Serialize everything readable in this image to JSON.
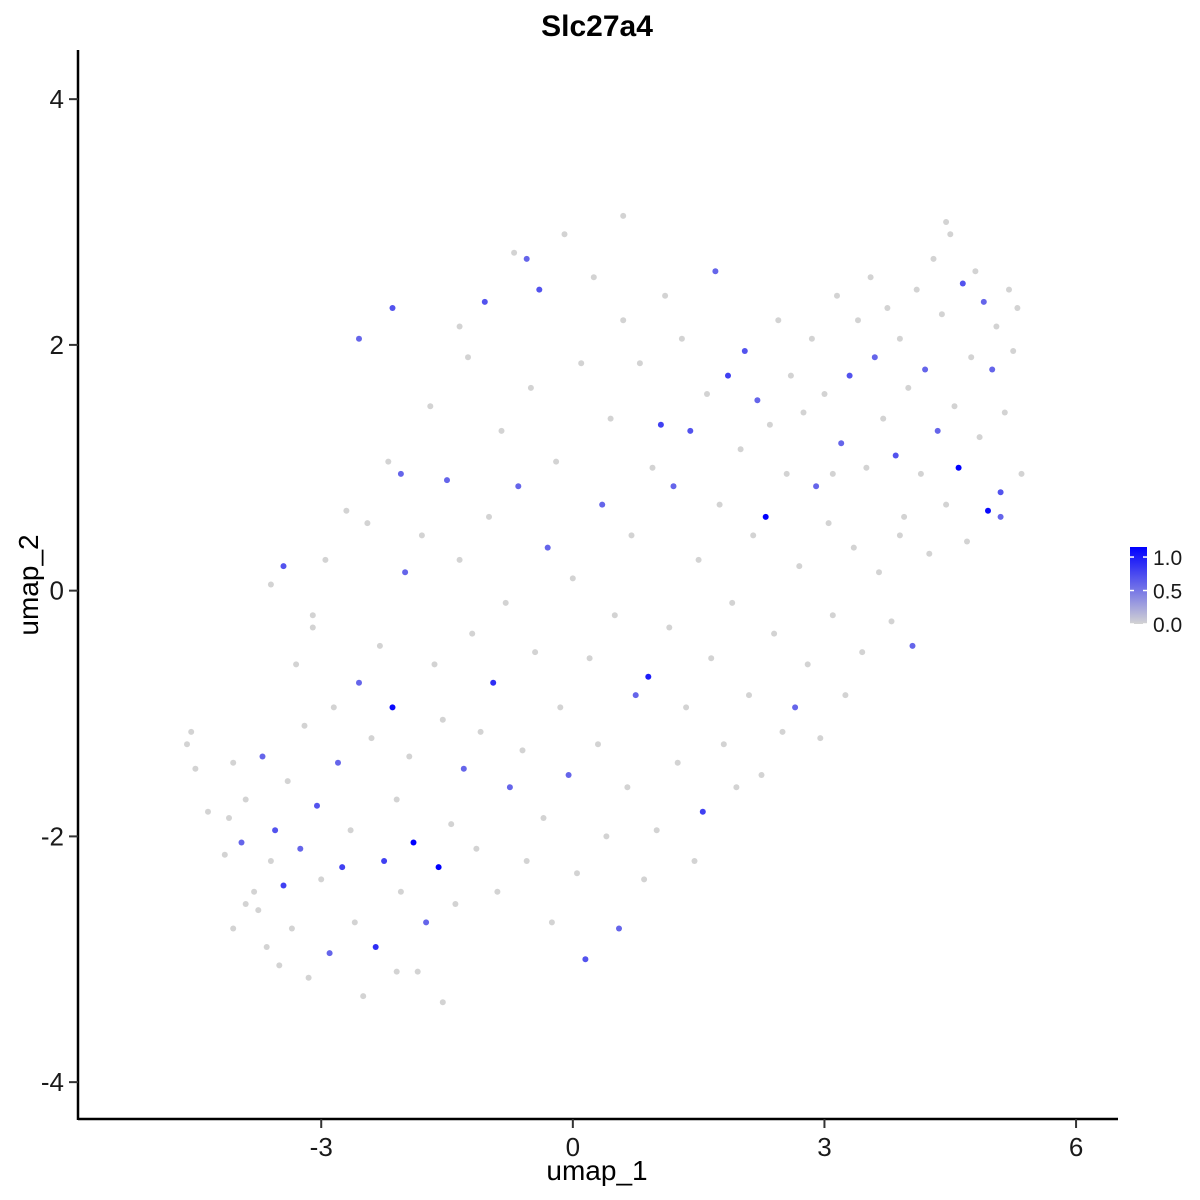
{
  "chart_data": {
    "type": "scatter",
    "title": "Slc27a4",
    "xlabel": "umap_1",
    "ylabel": "umap_2",
    "xlim": [
      -5.9,
      6.5
    ],
    "ylim": [
      -4.3,
      4.4
    ],
    "xticks": [
      -3,
      0,
      3,
      6
    ],
    "xtick_labels": [
      "-3",
      "0",
      "3",
      "6"
    ],
    "yticks": [
      -4,
      -2,
      0,
      2,
      4
    ],
    "ytick_labels": [
      "-4",
      "-2",
      "0",
      "2",
      "4"
    ],
    "grid": false,
    "legend": {
      "placement": "right",
      "type": "colorbar",
      "range": [
        0.0,
        1.15
      ],
      "ticks": [
        0.0,
        0.5,
        1.0
      ],
      "tick_labels": [
        "0.0",
        "0.5",
        "1.0"
      ],
      "low_color": "#D3D3D3",
      "high_color": "#0000FF"
    },
    "colors": {
      "low": "#D3D3D3",
      "high": "#0000FF"
    },
    "points": [
      [
        -4.6,
        -1.25,
        0
      ],
      [
        -4.55,
        -1.15,
        0
      ],
      [
        -4.5,
        -1.45,
        0
      ],
      [
        -4.35,
        -1.8,
        0
      ],
      [
        -4.15,
        -2.15,
        0
      ],
      [
        -4.1,
        -1.85,
        0
      ],
      [
        -4.05,
        -1.4,
        0
      ],
      [
        -3.95,
        -2.05,
        0.6
      ],
      [
        -3.9,
        -1.7,
        0
      ],
      [
        -3.8,
        -2.45,
        0
      ],
      [
        -3.75,
        -2.6,
        0
      ],
      [
        -3.7,
        -1.35,
        0.6
      ],
      [
        -3.65,
        -2.9,
        0
      ],
      [
        -3.6,
        -2.2,
        0
      ],
      [
        -3.55,
        -1.95,
        0.7
      ],
      [
        -3.5,
        -3.05,
        0
      ],
      [
        -3.45,
        -2.4,
        0.8
      ],
      [
        -3.4,
        -1.55,
        0
      ],
      [
        -3.35,
        -2.75,
        0
      ],
      [
        -3.3,
        -0.6,
        0
      ],
      [
        -3.25,
        -2.1,
        0.6
      ],
      [
        -3.2,
        -1.1,
        0
      ],
      [
        -3.15,
        -3.15,
        0
      ],
      [
        -3.1,
        -0.2,
        0
      ],
      [
        -3.05,
        -1.75,
        0.7
      ],
      [
        -3.0,
        -2.35,
        0
      ],
      [
        -2.95,
        0.25,
        0
      ],
      [
        -2.9,
        -2.95,
        0.6
      ],
      [
        -2.85,
        -0.95,
        0
      ],
      [
        -2.8,
        -1.4,
        0.6
      ],
      [
        -2.75,
        -2.25,
        0.8
      ],
      [
        -2.7,
        0.65,
        0
      ],
      [
        -2.65,
        -1.95,
        0
      ],
      [
        -2.6,
        -2.7,
        0
      ],
      [
        -2.55,
        -0.75,
        0.6
      ],
      [
        -2.5,
        -3.3,
        0
      ],
      [
        -2.45,
        0.55,
        0
      ],
      [
        -2.4,
        -1.2,
        0
      ],
      [
        -2.35,
        -2.9,
        0.9
      ],
      [
        -2.3,
        -0.45,
        0
      ],
      [
        -2.25,
        -2.2,
        0.8
      ],
      [
        -2.2,
        1.05,
        0
      ],
      [
        -2.15,
        -0.95,
        1.1
      ],
      [
        -2.1,
        -1.7,
        0
      ],
      [
        -2.05,
        -2.45,
        0
      ],
      [
        -2.0,
        0.15,
        0.6
      ],
      [
        -1.95,
        -1.35,
        0
      ],
      [
        -1.9,
        -2.05,
        1.15
      ],
      [
        -1.85,
        -3.1,
        0
      ],
      [
        -1.8,
        0.45,
        0
      ],
      [
        -1.75,
        -2.7,
        0.6
      ],
      [
        -1.7,
        1.5,
        0
      ],
      [
        -1.65,
        -0.6,
        0
      ],
      [
        -1.6,
        -2.25,
        1.15
      ],
      [
        -1.55,
        -1.05,
        0
      ],
      [
        -1.5,
        0.9,
        0.6
      ],
      [
        -1.45,
        -1.9,
        0
      ],
      [
        -1.4,
        -2.55,
        0
      ],
      [
        -1.35,
        0.25,
        0
      ],
      [
        -1.3,
        -1.45,
        0.6
      ],
      [
        -1.25,
        1.9,
        0
      ],
      [
        -1.2,
        -0.35,
        0
      ],
      [
        -1.15,
        -2.1,
        0
      ],
      [
        -1.1,
        -1.15,
        0
      ],
      [
        -1.05,
        2.35,
        0.7
      ],
      [
        -1.0,
        0.6,
        0
      ],
      [
        -0.95,
        -0.75,
        0.9
      ],
      [
        -0.9,
        -2.45,
        0
      ],
      [
        -0.85,
        1.3,
        0
      ],
      [
        -0.8,
        -0.1,
        0
      ],
      [
        -0.75,
        -1.6,
        0.6
      ],
      [
        -0.7,
        2.75,
        0
      ],
      [
        -0.65,
        0.85,
        0.6
      ],
      [
        -0.6,
        -1.3,
        0
      ],
      [
        -0.55,
        -2.2,
        0
      ],
      [
        -0.5,
        1.65,
        0
      ],
      [
        -0.45,
        -0.5,
        0
      ],
      [
        -0.4,
        2.45,
        0.7
      ],
      [
        -0.35,
        -1.85,
        0
      ],
      [
        -0.3,
        0.35,
        0.6
      ],
      [
        -0.25,
        -2.7,
        0
      ],
      [
        -0.2,
        1.05,
        0
      ],
      [
        -0.15,
        -0.95,
        0
      ],
      [
        -0.1,
        2.9,
        0
      ],
      [
        -0.05,
        -1.5,
        0.6
      ],
      [
        0.0,
        0.1,
        0
      ],
      [
        0.05,
        -2.3,
        0
      ],
      [
        0.1,
        1.85,
        0
      ],
      [
        0.15,
        -3.0,
        0.7
      ],
      [
        0.2,
        -0.55,
        0
      ],
      [
        0.25,
        2.55,
        0
      ],
      [
        0.3,
        -1.25,
        0
      ],
      [
        0.35,
        0.7,
        0.6
      ],
      [
        0.4,
        -2.0,
        0
      ],
      [
        0.45,
        1.4,
        0
      ],
      [
        0.5,
        -0.2,
        0
      ],
      [
        0.55,
        -2.75,
        0.6
      ],
      [
        0.6,
        2.2,
        0
      ],
      [
        0.65,
        -1.6,
        0
      ],
      [
        0.7,
        0.45,
        0
      ],
      [
        0.75,
        -0.85,
        0.6
      ],
      [
        0.8,
        1.85,
        0
      ],
      [
        0.85,
        -2.35,
        0
      ],
      [
        0.9,
        -0.7,
        1.0
      ],
      [
        0.95,
        1.0,
        0
      ],
      [
        1.0,
        -1.95,
        0
      ],
      [
        1.05,
        1.35,
        0.8
      ],
      [
        1.1,
        2.4,
        0
      ],
      [
        1.15,
        -0.3,
        0
      ],
      [
        1.2,
        0.85,
        0.6
      ],
      [
        1.25,
        -1.4,
        0
      ],
      [
        1.3,
        2.05,
        0
      ],
      [
        1.35,
        -0.95,
        0
      ],
      [
        1.4,
        1.3,
        0.7
      ],
      [
        1.45,
        -2.2,
        0
      ],
      [
        1.5,
        0.25,
        0
      ],
      [
        1.55,
        -1.8,
        0.8
      ],
      [
        1.6,
        1.6,
        0
      ],
      [
        1.65,
        -0.55,
        0
      ],
      [
        1.7,
        2.6,
        0.6
      ],
      [
        1.75,
        0.7,
        0
      ],
      [
        1.8,
        -1.25,
        0
      ],
      [
        1.85,
        1.75,
        0.8
      ],
      [
        1.9,
        -0.1,
        0
      ],
      [
        1.95,
        -1.6,
        0
      ],
      [
        2.0,
        1.15,
        0
      ],
      [
        2.05,
        1.95,
        0.7
      ],
      [
        2.1,
        -0.85,
        0
      ],
      [
        2.15,
        0.45,
        0
      ],
      [
        2.2,
        1.55,
        0.6
      ],
      [
        2.25,
        -1.5,
        0
      ],
      [
        2.3,
        0.6,
        1.15
      ],
      [
        2.35,
        1.35,
        0
      ],
      [
        2.4,
        -0.35,
        0
      ],
      [
        2.45,
        2.2,
        0
      ],
      [
        2.5,
        -1.15,
        0
      ],
      [
        2.55,
        0.95,
        0
      ],
      [
        2.6,
        1.75,
        0
      ],
      [
        2.65,
        -0.95,
        0.6
      ],
      [
        2.7,
        0.2,
        0
      ],
      [
        2.75,
        1.45,
        0
      ],
      [
        2.8,
        -0.6,
        0
      ],
      [
        2.85,
        2.05,
        0
      ],
      [
        2.9,
        0.85,
        0.6
      ],
      [
        2.95,
        -1.2,
        0
      ],
      [
        3.0,
        1.6,
        0
      ],
      [
        3.05,
        0.55,
        0
      ],
      [
        3.1,
        -0.2,
        0
      ],
      [
        3.15,
        2.4,
        0
      ],
      [
        3.2,
        1.2,
        0.6
      ],
      [
        3.25,
        -0.85,
        0
      ],
      [
        3.3,
        1.75,
        0.7
      ],
      [
        3.35,
        0.35,
        0
      ],
      [
        3.4,
        2.2,
        0
      ],
      [
        3.45,
        -0.5,
        0
      ],
      [
        3.5,
        1.0,
        0
      ],
      [
        3.55,
        2.55,
        0
      ],
      [
        3.6,
        1.9,
        0.6
      ],
      [
        3.65,
        0.15,
        0
      ],
      [
        3.7,
        1.4,
        0
      ],
      [
        3.75,
        2.3,
        0
      ],
      [
        3.8,
        -0.25,
        0
      ],
      [
        3.85,
        1.1,
        0.7
      ],
      [
        3.9,
        2.05,
        0
      ],
      [
        3.95,
        0.6,
        0
      ],
      [
        4.0,
        1.65,
        0
      ],
      [
        4.05,
        -0.45,
        0.6
      ],
      [
        4.1,
        2.45,
        0
      ],
      [
        4.15,
        0.95,
        0
      ],
      [
        4.2,
        1.8,
        0.6
      ],
      [
        4.25,
        0.3,
        0
      ],
      [
        4.3,
        2.7,
        0
      ],
      [
        4.35,
        1.3,
        0.6
      ],
      [
        4.4,
        2.25,
        0
      ],
      [
        4.45,
        0.7,
        0
      ],
      [
        4.5,
        2.9,
        0
      ],
      [
        4.55,
        1.5,
        0
      ],
      [
        4.6,
        1.0,
        1.15
      ],
      [
        4.65,
        2.5,
        0.7
      ],
      [
        4.7,
        0.4,
        0
      ],
      [
        4.75,
        1.9,
        0
      ],
      [
        4.8,
        2.6,
        0
      ],
      [
        4.85,
        1.25,
        0
      ],
      [
        4.9,
        2.35,
        0.6
      ],
      [
        4.95,
        0.65,
        1.1
      ],
      [
        5.0,
        1.8,
        0.6
      ],
      [
        5.05,
        2.15,
        0
      ],
      [
        5.1,
        0.8,
        0.7
      ],
      [
        5.15,
        1.45,
        0
      ],
      [
        5.2,
        2.45,
        0
      ],
      [
        5.25,
        1.95,
        0
      ],
      [
        5.3,
        2.3,
        0
      ],
      [
        5.35,
        0.95,
        0
      ],
      [
        5.1,
        0.6,
        0.6
      ],
      [
        4.45,
        3.0,
        0
      ],
      [
        3.9,
        0.45,
        0
      ],
      [
        3.1,
        0.95,
        0
      ],
      [
        -2.05,
        0.95,
        0.6
      ],
      [
        -2.55,
        2.05,
        0.6
      ],
      [
        -2.15,
        2.3,
        0.7
      ],
      [
        -1.35,
        2.15,
        0
      ],
      [
        -0.55,
        2.7,
        0.6
      ],
      [
        0.6,
        3.05,
        0
      ],
      [
        -3.6,
        0.05,
        0
      ],
      [
        -3.45,
        0.2,
        0.7
      ],
      [
        -3.1,
        -0.3,
        0
      ],
      [
        -3.9,
        -2.55,
        0
      ],
      [
        -4.05,
        -2.75,
        0
      ],
      [
        -2.1,
        -3.1,
        0
      ],
      [
        -1.55,
        -3.35,
        0
      ]
    ]
  }
}
